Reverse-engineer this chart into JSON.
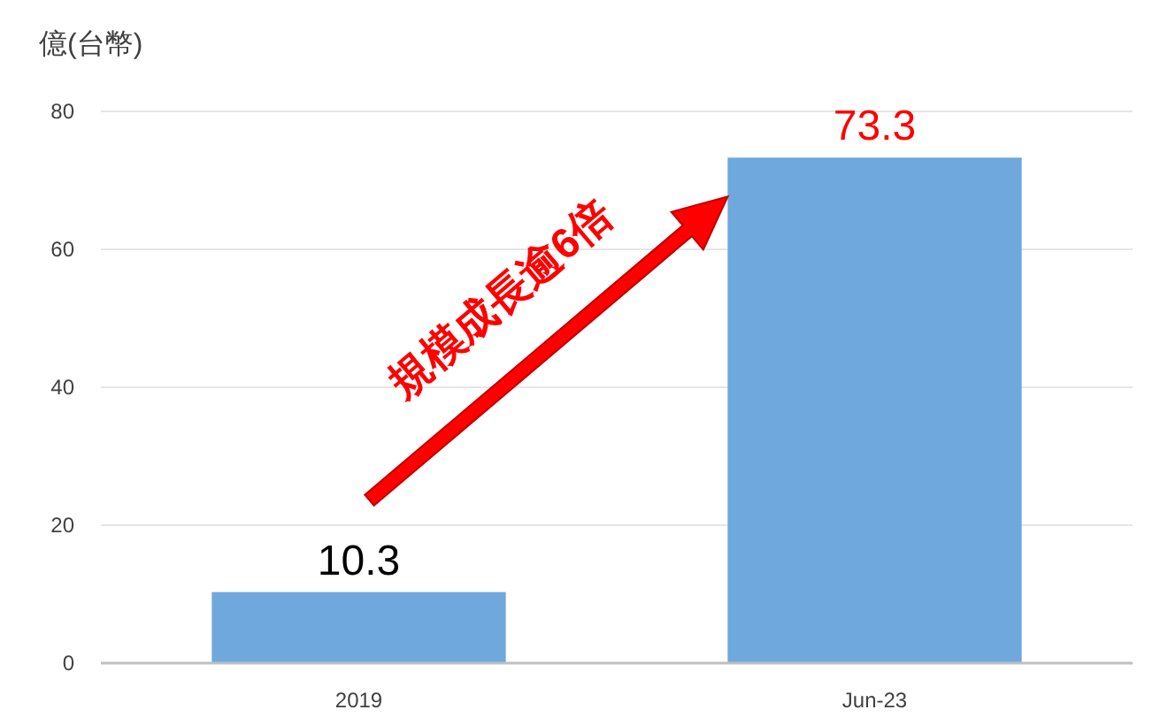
{
  "chart_data": {
    "type": "bar",
    "ylabel": "億(台幣)",
    "categories": [
      "2019",
      "Jun-23"
    ],
    "values": [
      10.3,
      73.3
    ],
    "color": "#6fa8dc",
    "ylim": [
      0,
      80
    ],
    "yticks": [
      0,
      20,
      40,
      60,
      80
    ],
    "grid": "y",
    "data_labels": true,
    "annotations": [
      "規模成長逾6倍"
    ]
  }
}
